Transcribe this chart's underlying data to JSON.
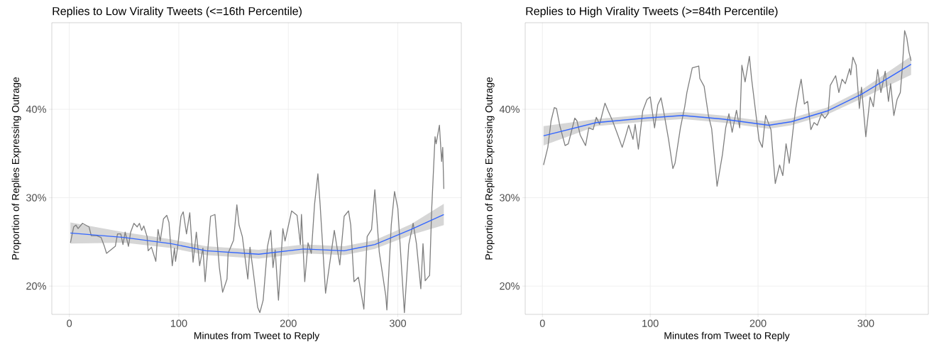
{
  "chart_data": [
    {
      "type": "line",
      "title": "Replies to Low Virality Tweets (<=16th Percentile)",
      "xlabel": "Minutes from Tweet to Reply",
      "ylabel": "Proportion of Replies Expressing Outrage",
      "xlim": [
        -16,
        358
      ],
      "ylim": [
        16.8,
        49.8
      ],
      "xticks": [
        0,
        100,
        200,
        300
      ],
      "yticks": [
        {
          "value": 20,
          "label": "20%"
        },
        {
          "value": 30,
          "label": "30%"
        },
        {
          "value": 40,
          "label": "40%"
        }
      ],
      "grid": true,
      "series": [
        {
          "color": "#7f7f7f",
          "x": [
            1,
            4,
            6,
            8,
            12,
            18,
            20,
            25,
            29,
            32,
            34,
            42,
            44,
            47,
            49,
            51,
            54,
            56,
            59,
            62,
            64,
            66,
            68,
            71,
            72,
            75,
            79,
            81,
            83,
            86,
            89,
            91,
            94,
            96,
            97,
            99,
            102,
            104,
            107,
            110,
            113,
            116,
            119,
            122,
            124,
            129,
            133,
            137,
            140,
            144,
            145,
            150,
            153,
            155,
            158,
            160,
            163,
            165,
            168,
            172,
            174,
            177,
            181,
            184,
            186,
            188,
            191,
            195,
            197,
            203,
            208,
            211,
            212,
            215,
            218,
            221,
            224,
            227,
            229,
            234,
            240,
            242,
            247,
            251,
            255,
            257,
            260,
            264,
            269,
            272,
            276,
            279,
            283,
            289,
            290,
            294,
            297,
            300,
            306,
            310,
            314,
            317,
            321,
            323,
            325,
            329,
            331,
            334,
            335,
            338,
            340,
            341,
            342
          ],
          "values": [
            24.9,
            26.7,
            26.9,
            26.5,
            27.1,
            26.7,
            25.7,
            25.7,
            25.5,
            24.5,
            23.7,
            24.5,
            25.9,
            25.9,
            24.7,
            26.1,
            24.5,
            26.1,
            27.1,
            26.7,
            27.1,
            26.3,
            26.8,
            25.6,
            24.0,
            24.4,
            22.8,
            26.4,
            25.1,
            27.6,
            28.0,
            27.2,
            22.3,
            24.3,
            22.8,
            24.5,
            27.9,
            28.4,
            25.9,
            28.3,
            22.7,
            26.1,
            22.3,
            24.3,
            20.5,
            27.9,
            28.1,
            22.1,
            19.3,
            20.8,
            23.7,
            25.2,
            29.2,
            26.9,
            25.6,
            23.7,
            20.8,
            24.4,
            21.6,
            17.6,
            17.0,
            18.4,
            24.5,
            26.3,
            22.1,
            24.1,
            18.4,
            26.5,
            25.1,
            28.5,
            28.0,
            24.7,
            28.1,
            20.5,
            24.9,
            23.7,
            29.3,
            32.7,
            29.3,
            19.2,
            24.5,
            26.3,
            22.4,
            27.9,
            28.5,
            26.9,
            20.5,
            21.0,
            17.4,
            25.6,
            26.4,
            30.9,
            23.9,
            18.9,
            17.3,
            26.9,
            30.7,
            28.8,
            17.0,
            24.7,
            27.1,
            24.8,
            19.7,
            24.8,
            20.6,
            21.2,
            28.9,
            36.9,
            36.1,
            38.2,
            34.1,
            35.7,
            31.0
          ]
        },
        {
          "color": "#3366ff",
          "x": [
            1,
            50,
            93,
            125,
            173,
            214,
            251,
            279,
            312,
            342
          ],
          "values": [
            26.0,
            25.5,
            24.8,
            24.0,
            23.6,
            24.2,
            24.0,
            24.7,
            26.4,
            28.1
          ],
          "lower": [
            24.8,
            24.9,
            24.3,
            23.5,
            23.1,
            23.7,
            23.5,
            24.2,
            25.8,
            26.9
          ],
          "upper": [
            27.2,
            26.1,
            25.3,
            24.5,
            24.1,
            24.7,
            24.5,
            25.2,
            27.0,
            29.3
          ]
        }
      ]
    },
    {
      "type": "line",
      "title": "Replies to High Virality Tweets (>=84th Percentile)",
      "xlabel": "Minutes from Tweet to Reply",
      "ylabel": "Proportion of Replies Expressing Outrage",
      "xlim": [
        -16,
        358
      ],
      "ylim": [
        16.8,
        49.8
      ],
      "xticks": [
        0,
        100,
        200,
        300
      ],
      "yticks": [
        {
          "value": 20,
          "label": "20%"
        },
        {
          "value": 30,
          "label": "30%"
        },
        {
          "value": 40,
          "label": "40%"
        }
      ],
      "grid": true,
      "series": [
        {
          "color": "#7f7f7f",
          "x": [
            1,
            5,
            8,
            11,
            13,
            16,
            21,
            24,
            30,
            32,
            35,
            40,
            43,
            47,
            50,
            53,
            58,
            61,
            65,
            69,
            74,
            77,
            80,
            84,
            86,
            89,
            93,
            97,
            100,
            104,
            107,
            110,
            113,
            117,
            121,
            123,
            128,
            132,
            134,
            139,
            145,
            146,
            150,
            154,
            157,
            162,
            167,
            170,
            173,
            176,
            180,
            183,
            185,
            188,
            192,
            194,
            201,
            204,
            207,
            212,
            216,
            220,
            223,
            226,
            229,
            233,
            235,
            238,
            240,
            243,
            246,
            249,
            252,
            255,
            259,
            262,
            265,
            267,
            272,
            275,
            278,
            281,
            285,
            286,
            288,
            291,
            294,
            296,
            300,
            304,
            307,
            311,
            314,
            318,
            321,
            323,
            326,
            329,
            332,
            334,
            336,
            338,
            340,
            342
          ],
          "values": [
            33.7,
            35.7,
            38.7,
            40.2,
            40.1,
            38.2,
            35.9,
            36.1,
            39.0,
            38.7,
            37.1,
            35.9,
            37.9,
            37.7,
            39.1,
            38.3,
            40.7,
            39.8,
            38.7,
            37.4,
            35.7,
            36.9,
            38.2,
            36.6,
            38.3,
            35.5,
            39.8,
            41.1,
            41.4,
            37.9,
            40.5,
            41.3,
            39.4,
            36.6,
            33.3,
            33.9,
            37.9,
            40.3,
            41.9,
            44.7,
            44.9,
            43.5,
            42.6,
            39.3,
            37.8,
            31.3,
            34.9,
            37.9,
            39.5,
            37.4,
            39.9,
            37.9,
            45.0,
            43.1,
            46.0,
            43.5,
            36.5,
            35.7,
            39.3,
            37.7,
            31.6,
            33.7,
            32.5,
            36.1,
            33.9,
            38.2,
            40.1,
            42.2,
            43.4,
            40.6,
            40.9,
            37.7,
            38.5,
            38.2,
            39.5,
            39.0,
            39.5,
            42.7,
            43.8,
            41.9,
            43.4,
            42.9,
            44.6,
            43.9,
            45.9,
            45.0,
            40.1,
            42.5,
            36.9,
            41.4,
            40.3,
            44.5,
            41.9,
            44.3,
            40.9,
            42.9,
            39.3,
            41.1,
            41.9,
            44.9,
            48.9,
            48.1,
            46.5,
            45.5
          ]
        },
        {
          "color": "#3366ff",
          "x": [
            1,
            50,
            95,
            130,
            167,
            210,
            231,
            264,
            296,
            342
          ],
          "values": [
            37.0,
            38.5,
            39.0,
            39.3,
            38.9,
            38.2,
            38.6,
            39.8,
            41.7,
            45.1
          ],
          "lower": [
            35.9,
            38.1,
            38.6,
            38.9,
            38.5,
            37.8,
            38.2,
            39.4,
            41.2,
            43.9
          ],
          "upper": [
            38.1,
            38.9,
            39.4,
            39.7,
            39.3,
            38.6,
            39.0,
            40.2,
            42.2,
            46.0
          ]
        }
      ]
    }
  ]
}
